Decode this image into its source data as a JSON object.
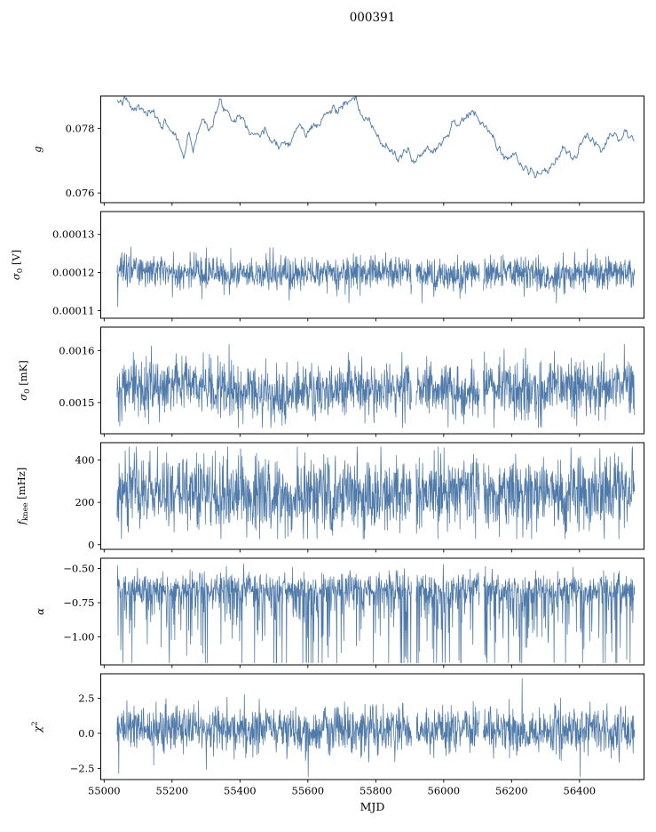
{
  "figure": {
    "title": "000391",
    "background": "#ffffff",
    "trace_color": "#4e79a8",
    "axis_color": "#000000"
  },
  "chart_data": {
    "type": "line",
    "title": "000391",
    "xlabel": "MJD",
    "legend": "none",
    "grid": false,
    "x_axis": {
      "lim": [
        54990,
        56590
      ],
      "ticks": [
        55000,
        55200,
        55400,
        55600,
        55800,
        56000,
        56200,
        56400
      ],
      "tick_labels": [
        "55000",
        "55200",
        "55400",
        "55600",
        "55800",
        "56000",
        "56200",
        "56400"
      ]
    },
    "data_x_range": [
      55038,
      56562
    ],
    "gaps": [
      [
        55906,
        55918
      ],
      [
        56106,
        56116
      ]
    ],
    "seed": 7,
    "panels": [
      {
        "id": "g",
        "ylabel_parts": [
          {
            "t": "g",
            "italic": true
          }
        ],
        "ylim": [
          0.0757,
          0.079
        ],
        "yticks": [
          {
            "v": 0.078,
            "label": "0.078"
          },
          {
            "v": 0.076,
            "label": "0.076"
          }
        ],
        "series": {
          "kind": "trend",
          "dt": 2,
          "ar": 0.85,
          "noise_sd": 6e-05,
          "keypoints": [
            [
              55038,
              0.0787
            ],
            [
              55060,
              0.0789
            ],
            [
              55080,
              0.0785
            ],
            [
              55100,
              0.0786
            ],
            [
              55130,
              0.0784
            ],
            [
              55160,
              0.0782
            ],
            [
              55190,
              0.0781
            ],
            [
              55215,
              0.0777
            ],
            [
              55235,
              0.0771
            ],
            [
              55250,
              0.0779
            ],
            [
              55262,
              0.0774
            ],
            [
              55280,
              0.0781
            ],
            [
              55300,
              0.0783
            ],
            [
              55320,
              0.0782
            ],
            [
              55345,
              0.0788
            ],
            [
              55360,
              0.0786
            ],
            [
              55380,
              0.0784
            ],
            [
              55400,
              0.0785
            ],
            [
              55420,
              0.0782
            ],
            [
              55440,
              0.078
            ],
            [
              55470,
              0.0778
            ],
            [
              55500,
              0.0777
            ],
            [
              55530,
              0.0776
            ],
            [
              55555,
              0.0778
            ],
            [
              55575,
              0.0781
            ],
            [
              55595,
              0.0778
            ],
            [
              55615,
              0.078
            ],
            [
              55640,
              0.0783
            ],
            [
              55665,
              0.0785
            ],
            [
              55690,
              0.0786
            ],
            [
              55715,
              0.0788
            ],
            [
              55735,
              0.0787
            ],
            [
              55755,
              0.0784
            ],
            [
              55775,
              0.0782
            ],
            [
              55795,
              0.0779
            ],
            [
              55815,
              0.0776
            ],
            [
              55835,
              0.0774
            ],
            [
              55855,
              0.0772
            ],
            [
              55875,
              0.077
            ],
            [
              55895,
              0.0773
            ],
            [
              55915,
              0.077
            ],
            [
              55935,
              0.0772
            ],
            [
              55955,
              0.0775
            ],
            [
              55975,
              0.0774
            ],
            [
              55995,
              0.0777
            ],
            [
              56015,
              0.078
            ],
            [
              56035,
              0.0782
            ],
            [
              56055,
              0.0783
            ],
            [
              56080,
              0.0784
            ],
            [
              56105,
              0.0782
            ],
            [
              56125,
              0.078
            ],
            [
              56145,
              0.0777
            ],
            [
              56165,
              0.0773
            ],
            [
              56185,
              0.0772
            ],
            [
              56205,
              0.0771
            ],
            [
              56225,
              0.0769
            ],
            [
              56245,
              0.0768
            ],
            [
              56265,
              0.0766
            ],
            [
              56285,
              0.0765
            ],
            [
              56305,
              0.0767
            ],
            [
              56325,
              0.0769
            ],
            [
              56345,
              0.0772
            ],
            [
              56365,
              0.0773
            ],
            [
              56385,
              0.0771
            ],
            [
              56405,
              0.0774
            ],
            [
              56425,
              0.0776
            ],
            [
              56445,
              0.0775
            ],
            [
              56465,
              0.0777
            ],
            [
              56485,
              0.0778
            ],
            [
              56505,
              0.0779
            ],
            [
              56530,
              0.0778
            ],
            [
              56562,
              0.0778
            ]
          ]
        }
      },
      {
        "id": "sigma0-V",
        "ylabel_parts": [
          {
            "t": "σ",
            "italic": true
          },
          {
            "t": "0",
            "sub": true
          },
          {
            "t": " [V]"
          }
        ],
        "ylim": [
          0.000108,
          0.000136
        ],
        "yticks": [
          {
            "v": 0.00013,
            "label": "0.00013"
          },
          {
            "v": 0.00012,
            "label": "0.00012"
          },
          {
            "v": 0.00011,
            "label": "0.00011"
          }
        ],
        "series": {
          "kind": "noise",
          "dt": 1,
          "noise_sd": 2.1e-06,
          "spike_down": {
            "p": 0.03,
            "scale": 2.2e-06
          },
          "clip": [
            0.000112,
            0.000128
          ],
          "fixed_spikes": [
            [
              55040,
              0.000111
            ]
          ],
          "keypoints": [
            [
              55038,
              0.0001207
            ],
            [
              55100,
              0.0001208
            ],
            [
              55180,
              0.0001203
            ],
            [
              55260,
              0.00012
            ],
            [
              55340,
              0.00012
            ],
            [
              55420,
              0.0001197
            ],
            [
              55500,
              0.0001194
            ],
            [
              55580,
              0.0001194
            ],
            [
              55660,
              0.00012
            ],
            [
              55740,
              0.0001204
            ],
            [
              55820,
              0.0001203
            ],
            [
              55900,
              0.0001196
            ],
            [
              55980,
              0.0001192
            ],
            [
              56060,
              0.0001196
            ],
            [
              56140,
              0.00012
            ],
            [
              56220,
              0.00012
            ],
            [
              56300,
              0.0001196
            ],
            [
              56380,
              0.0001197
            ],
            [
              56460,
              0.00012
            ],
            [
              56562,
              0.0001198
            ]
          ]
        }
      },
      {
        "id": "sigma0-mK",
        "ylabel_parts": [
          {
            "t": "σ",
            "italic": true
          },
          {
            "t": "0",
            "sub": true
          },
          {
            "t": " [mK]"
          }
        ],
        "ylim": [
          0.00144,
          0.001645
        ],
        "yticks": [
          {
            "v": 0.0016,
            "label": "0.0016"
          },
          {
            "v": 0.0015,
            "label": "0.0015"
          }
        ],
        "series": {
          "kind": "noise",
          "dt": 1,
          "noise_sd": 2.6e-05,
          "spike_down": {
            "p": 0.05,
            "scale": 2.4e-05
          },
          "spike_up": {
            "p": 0.01,
            "scale": 1.6e-05
          },
          "clip": [
            0.001452,
            0.001612
          ],
          "fixed_spikes": [
            [
              55042,
              0.001463
            ],
            [
              56178,
              0.001603
            ]
          ],
          "keypoints": [
            [
              55038,
              0.00153
            ],
            [
              55120,
              0.001528
            ],
            [
              55200,
              0.001531
            ],
            [
              55280,
              0.001529
            ],
            [
              55360,
              0.001524
            ],
            [
              55440,
              0.00152
            ],
            [
              55520,
              0.001517
            ],
            [
              55600,
              0.001522
            ],
            [
              55680,
              0.001526
            ],
            [
              55760,
              0.001527
            ],
            [
              55840,
              0.001528
            ],
            [
              55920,
              0.001526
            ],
            [
              56000,
              0.001525
            ],
            [
              56080,
              0.001528
            ],
            [
              56160,
              0.001531
            ],
            [
              56240,
              0.001532
            ],
            [
              56320,
              0.00153
            ],
            [
              56400,
              0.001531
            ],
            [
              56480,
              0.001533
            ],
            [
              56562,
              0.001532
            ]
          ]
        }
      },
      {
        "id": "fknee",
        "ylabel_parts": [
          {
            "t": "f",
            "italic": true
          },
          {
            "t": "knee",
            "sub": true
          },
          {
            "t": " [mHz]"
          }
        ],
        "ylim": [
          -22,
          482
        ],
        "yticks": [
          {
            "v": 400,
            "label": "400"
          },
          {
            "v": 200,
            "label": "200"
          },
          {
            "v": 0,
            "label": "0"
          }
        ],
        "series": {
          "kind": "noise",
          "dt": 1,
          "noise_sd": 88,
          "spike_down": {
            "p": 0.02,
            "scale": 60
          },
          "spike_up": {
            "p": 0.02,
            "scale": 55
          },
          "clip": [
            28,
            462
          ],
          "keypoints": [
            [
              55038,
              250
            ],
            [
              55600,
              242
            ],
            [
              56100,
              250
            ],
            [
              56562,
              248
            ]
          ]
        }
      },
      {
        "id": "alpha",
        "ylabel_parts": [
          {
            "t": "α",
            "italic": true
          }
        ],
        "ylim": [
          -1.205,
          -0.425
        ],
        "yticks": [
          {
            "v": -0.5,
            "label": "−0.50"
          },
          {
            "v": -0.75,
            "label": "−0.75"
          },
          {
            "v": -1.0,
            "label": "−1.00"
          }
        ],
        "series": {
          "kind": "noise",
          "dt": 1,
          "noise_sd": 0.058,
          "spike_down": {
            "p": 0.32,
            "scale": 0.24
          },
          "clip": [
            -1.19,
            -0.45
          ],
          "keypoints": [
            [
              55038,
              -0.635
            ],
            [
              55300,
              -0.645
            ],
            [
              55600,
              -0.64
            ],
            [
              55900,
              -0.635
            ],
            [
              56200,
              -0.645
            ],
            [
              56562,
              -0.635
            ]
          ]
        }
      },
      {
        "id": "chi2",
        "ylabel_parts": [
          {
            "t": "χ",
            "italic": true
          },
          {
            "t": "2",
            "sup": true
          }
        ],
        "ylim": [
          -3.3,
          4.25
        ],
        "yticks": [
          {
            "v": 2.5,
            "label": "2.5"
          },
          {
            "v": 0.0,
            "label": "0.0"
          },
          {
            "v": -2.5,
            "label": "−2.5"
          }
        ],
        "series": {
          "kind": "noise",
          "dt": 1,
          "noise_sd": 0.82,
          "spike_down": {
            "p": 0.012,
            "scale": 0.9
          },
          "spike_up": {
            "p": 0.012,
            "scale": 0.9
          },
          "clip": [
            -3.1,
            3.9
          ],
          "keypoints": [
            [
              55038,
              0.25
            ],
            [
              56562,
              0.25
            ]
          ]
        }
      }
    ]
  }
}
